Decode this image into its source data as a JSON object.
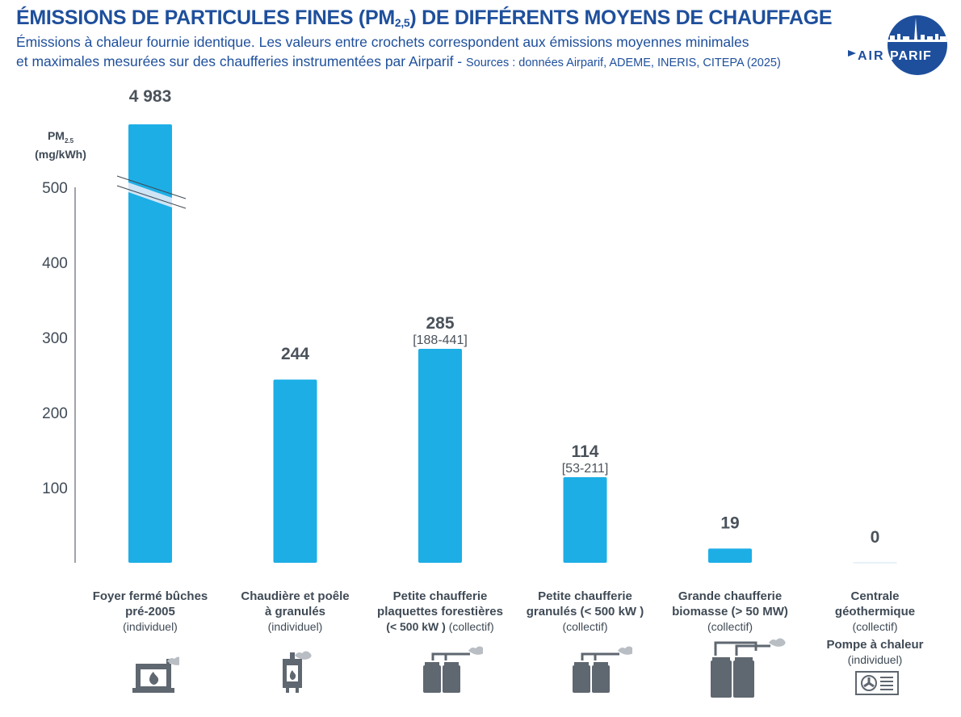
{
  "header": {
    "title_main": "ÉMISSIONS DE PARTICULES FINES (PM",
    "title_sub": "2,5",
    "title_end": ") DE DIFFÉRENTS MOYENS DE CHAUFFAGE",
    "subtitle_line1": "Émissions à chaleur fournie identique. Les valeurs entre crochets correspondent aux émissions moyennes minimales",
    "subtitle_line2": "et maximales mesurées sur des chaufferies instrumentées par Airparif - ",
    "sources": "Sources : données Airparif, ADEME, INERIS, CITEPA (2025)"
  },
  "logo": {
    "text_left": "AIR",
    "text_right": "PARIF"
  },
  "colors": {
    "bar": "#1daee6",
    "break": "#cfe5f6",
    "title": "#1e4f9c",
    "text": "#3f4a55",
    "icon": "#5f6770"
  },
  "icons": [
    "fireplace-icon",
    "pellet-stove-icon",
    "small-boiler-plant-icon",
    "small-boiler-plant-icon",
    "large-biomass-plant-icon",
    "heat-pump-icon"
  ],
  "chart_data": {
    "type": "bar",
    "ylabel_main": "PM",
    "ylabel_sub": "2.5",
    "ylabel_unit": "(mg/kWh)",
    "ylim": [
      0,
      500
    ],
    "axis_break_above": 500,
    "yticks": [
      100,
      200,
      300,
      400,
      500
    ],
    "grid": false,
    "categories": [
      {
        "lines": [
          "Foyer fermé bûches",
          "pré-2005"
        ],
        "sub": "(individuel)"
      },
      {
        "lines": [
          "Chaudière et poêle",
          "à granulés"
        ],
        "sub": "(individuel)"
      },
      {
        "lines": [
          "Petite chaufferie",
          "plaquettes forestières"
        ],
        "sub_bold": "(< 500 kW )",
        "sub": " (collectif)"
      },
      {
        "lines": [
          "Petite chaufferie",
          "granulés (< 500 kW )"
        ],
        "sub": "(collectif)"
      },
      {
        "lines": [
          "Grande chaufferie",
          "biomasse (> 50 MW)"
        ],
        "sub": "(collectif)"
      },
      {
        "lines": [
          "Centrale",
          "géothermique"
        ],
        "sub": "(collectif)",
        "extra_line": "Pompe à chaleur",
        "extra_sub": "(individuel)"
      }
    ],
    "values": [
      4983,
      244,
      285,
      114,
      19,
      0
    ],
    "value_labels": [
      "4 983",
      "244",
      "285",
      "114",
      "19",
      "0"
    ],
    "range_labels": [
      "",
      "",
      "[188-441]",
      "[53-211]",
      "",
      ""
    ]
  }
}
